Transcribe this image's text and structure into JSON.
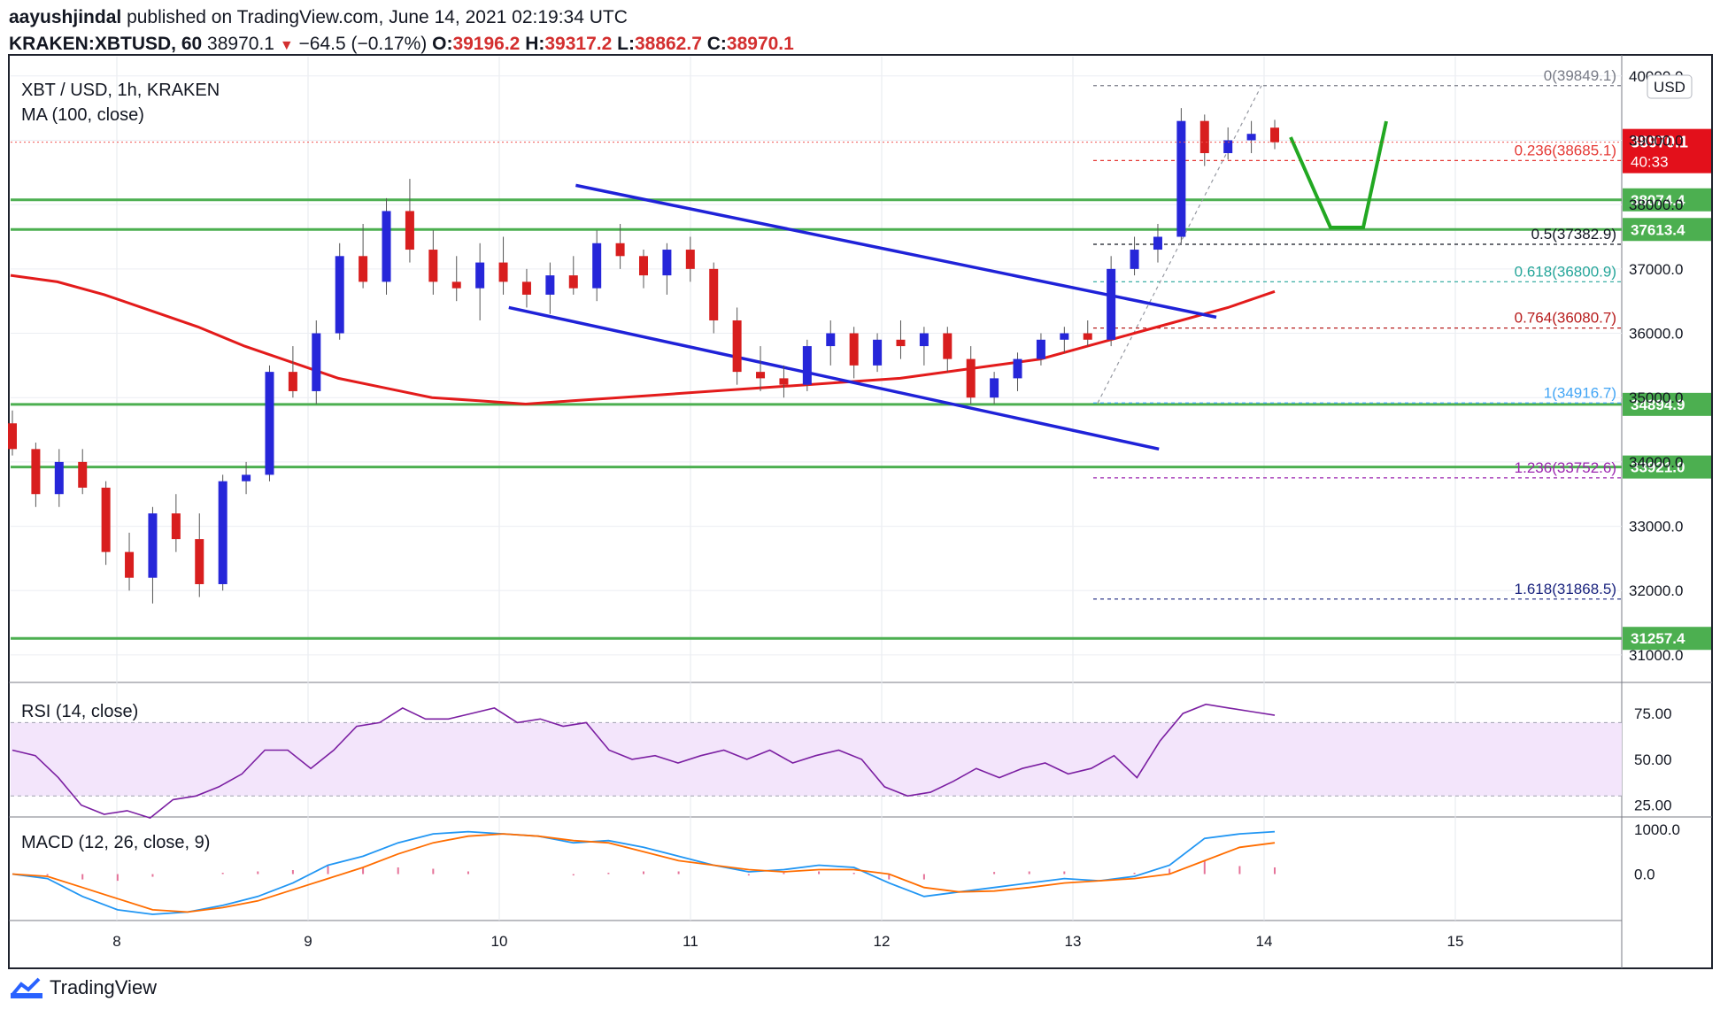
{
  "header": {
    "author": "aayushjindal",
    "published_text": "published on TradingView.com, June 14, 2021 02:19:34 UTC",
    "symbol": "KRAKEN:XBTUSD, 60",
    "last": "38970.1",
    "change": "−64.5 (−0.17%)",
    "o_label": "O:",
    "o_value": "39196.2",
    "h_label": "H:",
    "h_value": "39317.2",
    "l_label": "L:",
    "l_value": "38862.7",
    "c_label": "C:",
    "c_value": "38970.1"
  },
  "footer": {
    "brand": "TradingView"
  },
  "colors": {
    "up": "#2626d9",
    "down": "#d81e1e",
    "ma": "#e31b1b",
    "level": "#4caf50",
    "channel": "#1f22d8",
    "rsi": "#7b1fa2",
    "macd": "#2196f3",
    "signal": "#ff6d00",
    "hist": "#e57399"
  },
  "chart_data": [
    {
      "type": "candlestick",
      "title": "XBT / USD, 1h, KRAKEN",
      "indicator_label": "MA (100, close)",
      "currency": "USD",
      "x_ticks": [
        "8",
        "9",
        "10",
        "11",
        "12",
        "13",
        "14",
        "15"
      ],
      "y_ticks": [
        "31000.0",
        "32000.0",
        "33000.0",
        "34000.0",
        "35000.0",
        "36000.0",
        "37000.0",
        "38000.0",
        "39000.0",
        "40000.0"
      ],
      "ylim": [
        30600,
        40300
      ],
      "candles_ohlc": [
        [
          34600,
          34800,
          34100,
          34200
        ],
        [
          34200,
          34300,
          33300,
          33500
        ],
        [
          33500,
          34200,
          33300,
          34000
        ],
        [
          34000,
          34200,
          33500,
          33600
        ],
        [
          33600,
          33700,
          32400,
          32600
        ],
        [
          32600,
          32900,
          32000,
          32200
        ],
        [
          32200,
          33300,
          31800,
          33200
        ],
        [
          33200,
          33500,
          32600,
          32800
        ],
        [
          32800,
          33200,
          31900,
          32100
        ],
        [
          32100,
          33800,
          32000,
          33700
        ],
        [
          33700,
          34000,
          33500,
          33800
        ],
        [
          33800,
          35500,
          33700,
          35400
        ],
        [
          35400,
          35800,
          35000,
          35100
        ],
        [
          35100,
          36200,
          34900,
          36000
        ],
        [
          36000,
          37400,
          35900,
          37200
        ],
        [
          37200,
          37700,
          36700,
          36800
        ],
        [
          36800,
          38100,
          36600,
          37900
        ],
        [
          37900,
          38400,
          37100,
          37300
        ],
        [
          37300,
          37600,
          36600,
          36800
        ],
        [
          36800,
          37200,
          36500,
          36700
        ],
        [
          36700,
          37400,
          36200,
          37100
        ],
        [
          37100,
          37500,
          36600,
          36800
        ],
        [
          36800,
          37000,
          36400,
          36600
        ],
        [
          36600,
          37100,
          36300,
          36900
        ],
        [
          36900,
          37200,
          36600,
          36700
        ],
        [
          36700,
          37600,
          36500,
          37400
        ],
        [
          37400,
          37700,
          37000,
          37200
        ],
        [
          37200,
          37300,
          36700,
          36900
        ],
        [
          36900,
          37400,
          36600,
          37300
        ],
        [
          37300,
          37500,
          36800,
          37000
        ],
        [
          37000,
          37100,
          36000,
          36200
        ],
        [
          36200,
          36400,
          35200,
          35400
        ],
        [
          35400,
          35800,
          35100,
          35300
        ],
        [
          35300,
          35500,
          35000,
          35200
        ],
        [
          35200,
          35900,
          35100,
          35800
        ],
        [
          35800,
          36200,
          35500,
          36000
        ],
        [
          36000,
          36100,
          35300,
          35500
        ],
        [
          35500,
          36000,
          35400,
          35900
        ],
        [
          35900,
          36200,
          35600,
          35800
        ],
        [
          35800,
          36100,
          35500,
          36000
        ],
        [
          36000,
          36100,
          35400,
          35600
        ],
        [
          35600,
          35800,
          34900,
          35000
        ],
        [
          35000,
          35400,
          34900,
          35300
        ],
        [
          35300,
          35700,
          35100,
          35600
        ],
        [
          35600,
          36000,
          35500,
          35900
        ],
        [
          35900,
          36100,
          35700,
          36000
        ],
        [
          36000,
          36200,
          35800,
          35900
        ],
        [
          35900,
          37200,
          35800,
          37000
        ],
        [
          37000,
          37500,
          36900,
          37300
        ],
        [
          37300,
          37700,
          37100,
          37500
        ],
        [
          37500,
          39500,
          37400,
          39300
        ],
        [
          39300,
          39400,
          38600,
          38800
        ],
        [
          38800,
          39200,
          38700,
          39000
        ],
        [
          39000,
          39300,
          38800,
          39100
        ],
        [
          39196.2,
          39317.2,
          38862.7,
          38970.1
        ]
      ],
      "ma100": [
        36900,
        36800,
        36600,
        36350,
        36100,
        35800,
        35550,
        35300,
        35150,
        35000,
        34950,
        34900,
        34950,
        35000,
        35050,
        35100,
        35150,
        35200,
        35250,
        35300,
        35400,
        35500,
        35600,
        35800,
        36000,
        36200,
        36400,
        36650
      ],
      "channel_upper": [
        [
          10.4,
          38300
        ],
        [
          11.9,
          37300
        ],
        [
          13.75,
          36250
        ]
      ],
      "channel_lower": [
        [
          10.05,
          36400
        ],
        [
          12.0,
          35350
        ],
        [
          13.45,
          34200
        ]
      ],
      "horizontal_levels": [
        "38074.4",
        "37613.4",
        "34894.9",
        "33921.0",
        "31257.4"
      ],
      "current_price_label": "38970.1",
      "countdown_label": "40:33",
      "fib_levels": [
        {
          "ratio": "0",
          "value": "39849.1",
          "color": "#787b86"
        },
        {
          "ratio": "0.236",
          "value": "38685.1",
          "color": "#e53935"
        },
        {
          "ratio": "0.5",
          "value": "37382.9",
          "color": "#131722"
        },
        {
          "ratio": "0.618",
          "value": "36800.9",
          "color": "#26a69a"
        },
        {
          "ratio": "0.764",
          "value": "36080.7",
          "color": "#b71c1c"
        },
        {
          "ratio": "1",
          "value": "34916.7",
          "color": "#42a5f5"
        },
        {
          "ratio": "1.236",
          "value": "33752.6",
          "color": "#9c27b0"
        },
        {
          "ratio": "1.618",
          "value": "31868.5",
          "color": "#1a237e"
        }
      ]
    },
    {
      "type": "line",
      "title": "RSI (14, close)",
      "y_ticks": [
        "25.00",
        "50.00",
        "75.00"
      ],
      "ylim": [
        20,
        90
      ],
      "band": [
        30,
        70
      ],
      "values": [
        55,
        52,
        40,
        25,
        20,
        22,
        18,
        28,
        30,
        35,
        42,
        55,
        55,
        45,
        55,
        68,
        70,
        78,
        72,
        72,
        75,
        78,
        70,
        72,
        68,
        70,
        55,
        50,
        52,
        48,
        52,
        55,
        50,
        55,
        48,
        52,
        55,
        50,
        35,
        30,
        32,
        38,
        45,
        40,
        45,
        48,
        42,
        45,
        52,
        40,
        60,
        75,
        80,
        78,
        76,
        74
      ]
    },
    {
      "type": "line",
      "title": "MACD (12, 26, close, 9)",
      "y_ticks": [
        "1000.0",
        "0.0"
      ],
      "ylim": [
        -1000,
        1200
      ],
      "macd": [
        0,
        -100,
        -500,
        -800,
        -900,
        -850,
        -700,
        -500,
        -200,
        200,
        400,
        700,
        900,
        950,
        900,
        850,
        700,
        750,
        600,
        400,
        200,
        50,
        100,
        200,
        150,
        -200,
        -500,
        -400,
        -300,
        -200,
        -100,
        -150,
        -50,
        200,
        800,
        900,
        950
      ],
      "signal": [
        0,
        -50,
        -300,
        -550,
        -800,
        -850,
        -750,
        -600,
        -350,
        -100,
        150,
        450,
        700,
        850,
        900,
        850,
        750,
        700,
        500,
        300,
        200,
        100,
        50,
        100,
        100,
        0,
        -300,
        -400,
        -380,
        -300,
        -200,
        -150,
        -100,
        0,
        300,
        600,
        700
      ]
    }
  ]
}
